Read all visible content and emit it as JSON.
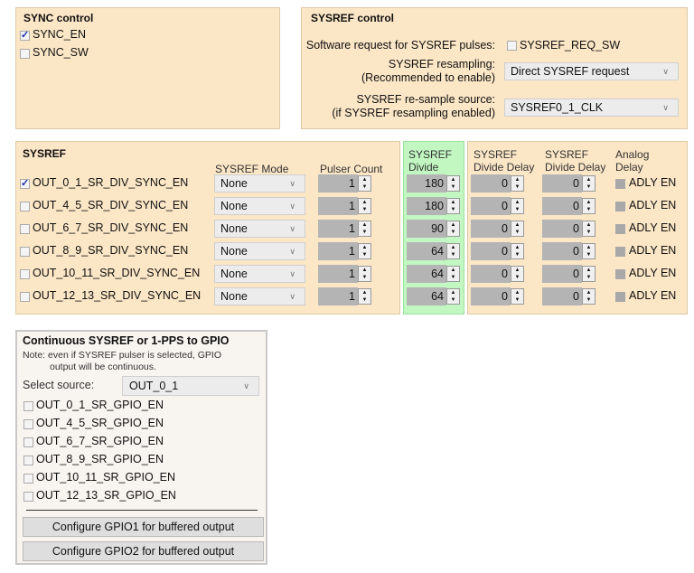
{
  "sync_control": {
    "title": "SYNC control",
    "items": [
      {
        "label": "SYNC_EN",
        "checked": true
      },
      {
        "label": "SYNC_SW",
        "checked": false
      }
    ]
  },
  "sysref_control": {
    "title": "SYSREF control",
    "sw_request_label": "Software request for SYSREF pulses:",
    "sw_request_checkbox": "SYSREF_REQ_SW",
    "sw_request_checked": false,
    "resampling_label1": "SYSREF resampling:",
    "resampling_label2": "(Recommended to enable)",
    "resampling_value": "Direct SYSREF request",
    "resample_source_label1": "SYSREF re-sample source:",
    "resample_source_label2": "(if SYSREF resampling enabled)",
    "resample_source_value": "SYSREF0_1_CLK"
  },
  "sysref": {
    "title": "SYSREF",
    "headers": {
      "mode": "SYSREF Mode",
      "pulser": "Pulser Count",
      "divide1": "SYSREF",
      "divide2": "Divide",
      "delay1a": "SYSREF",
      "delay1b": "Divide Delay",
      "delay2a": "SYSREF",
      "delay2b": "Divide Delay",
      "analog1": "Analog",
      "analog2": "Delay"
    },
    "rows": [
      {
        "label": "OUT_0_1_SR_DIV_SYNC_EN",
        "checked": true,
        "mode": "None",
        "pulser": "1",
        "divide": "180",
        "delay1": "0",
        "delay2": "0",
        "adly": "ADLY EN"
      },
      {
        "label": "OUT_4_5_SR_DIV_SYNC_EN",
        "checked": false,
        "mode": "None",
        "pulser": "1",
        "divide": "180",
        "delay1": "0",
        "delay2": "0",
        "adly": "ADLY EN"
      },
      {
        "label": "OUT_6_7_SR_DIV_SYNC_EN",
        "checked": false,
        "mode": "None",
        "pulser": "1",
        "divide": "90",
        "delay1": "0",
        "delay2": "0",
        "adly": "ADLY EN"
      },
      {
        "label": "OUT_8_9_SR_DIV_SYNC_EN",
        "checked": false,
        "mode": "None",
        "pulser": "1",
        "divide": "64",
        "delay1": "0",
        "delay2": "0",
        "adly": "ADLY EN"
      },
      {
        "label": "OUT_10_11_SR_DIV_SYNC_EN",
        "checked": false,
        "mode": "None",
        "pulser": "1",
        "divide": "64",
        "delay1": "0",
        "delay2": "0",
        "adly": "ADLY EN"
      },
      {
        "label": "OUT_12_13_SR_DIV_SYNC_EN",
        "checked": false,
        "mode": "None",
        "pulser": "1",
        "divide": "64",
        "delay1": "0",
        "delay2": "0",
        "adly": "ADLY EN"
      }
    ]
  },
  "gpio": {
    "title": "Continuous SYSREF or 1-PPS to GPIO",
    "note1": "Note: even if SYSREF pulser is selected, GPIO",
    "note2": "output will be continuous.",
    "source_label": "Select source:",
    "source_value": "OUT_0_1",
    "items": [
      {
        "label": "OUT_0_1_SR_GPIO_EN"
      },
      {
        "label": "OUT_4_5_SR_GPIO_EN"
      },
      {
        "label": "OUT_6_7_SR_GPIO_EN"
      },
      {
        "label": "OUT_8_9_SR_GPIO_EN"
      },
      {
        "label": "OUT_10_11_SR_GPIO_EN"
      },
      {
        "label": "OUT_12_13_SR_GPIO_EN"
      }
    ],
    "button1": "Configure GPIO1 for buffered output",
    "button2": "Configure GPIO2 for buffered output"
  },
  "colors": {
    "panel": "#fbe6c6",
    "highlight": "#c2f7c2",
    "check": "#1a2fa8"
  }
}
